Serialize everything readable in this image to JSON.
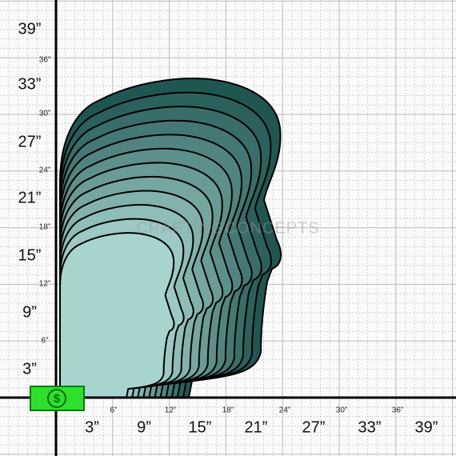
{
  "x_axis": {
    "major": [
      "3”",
      "9”",
      "15”",
      "21”",
      "27”",
      "33”",
      "39”"
    ],
    "minor": [
      "6”",
      "12”",
      "18”",
      "24”",
      "30”",
      "36”"
    ]
  },
  "y_axis": {
    "major": [
      "3”",
      "9”",
      "15”",
      "21”",
      "27”",
      "33”",
      "39”"
    ],
    "minor": [
      "6”",
      "12”",
      "18”",
      "24”",
      "30”",
      "36”"
    ]
  },
  "watermark": "CRAFTINGCONCEPTS",
  "badge": "$"
}
